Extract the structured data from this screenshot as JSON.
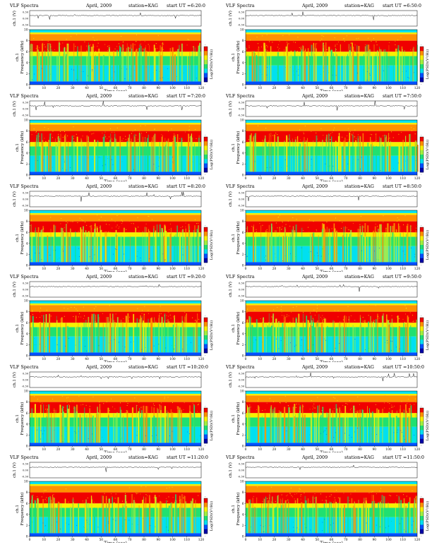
{
  "page": {
    "header_prefix": "VLF Spectra",
    "date": "April, 2009",
    "station": "station=KAG",
    "start_prefix": "start  UT  ="
  },
  "colors": {
    "deep_blue": "#0000a8",
    "blue": "#0050ff",
    "cyan": "#00e0f0",
    "green": "#20e070",
    "lime": "#a0f040",
    "yellow": "#f8f000",
    "orange": "#ff9000",
    "red": "#f00000"
  },
  "panels": [
    {
      "start_ut": "6:20:0"
    },
    {
      "start_ut": "6:50:0"
    },
    {
      "start_ut": "7:20:0"
    },
    {
      "start_ut": "7:50:0"
    },
    {
      "start_ut": "8:20:0"
    },
    {
      "start_ut": "8:50:0"
    },
    {
      "start_ut": "9:20:0"
    },
    {
      "start_ut": "9:50:0"
    },
    {
      "start_ut": "10:20:0"
    },
    {
      "start_ut": "10:50:0"
    },
    {
      "start_ut": "11:20:0"
    },
    {
      "start_ut": "11:50:0"
    }
  ],
  "chart_data": {
    "type": "heatmap",
    "xlabel": "Time  (sec)",
    "ylabel": "Frequency  (kHz)",
    "channel_label": "ch.1",
    "waveform_ylabel": "ch.1 (V)",
    "waveform_ticks": [
      "0.30",
      "0.00",
      "-0.30"
    ],
    "xlim": [
      0,
      120
    ],
    "x_ticks": [
      "0",
      "10",
      "20",
      "30",
      "40",
      "50",
      "60",
      "70",
      "80",
      "90",
      "100",
      "110",
      "120"
    ],
    "ylim": [
      0,
      10
    ],
    "y_ticks": [
      "0",
      "2",
      "4",
      "6",
      "8",
      "10"
    ],
    "colorbar_label": "Log(PSD)(V²/Hz)",
    "colorbar_ticks": [
      "-",
      "-"
    ],
    "band_structure_khz": [
      {
        "range": [
          0,
          0.6
        ],
        "level": "blue"
      },
      {
        "range": [
          0.6,
          3.5
        ],
        "level": "cyan"
      },
      {
        "range": [
          3.5,
          5.2
        ],
        "level": "green"
      },
      {
        "range": [
          5.2,
          6.0
        ],
        "level": "yellow"
      },
      {
        "range": [
          6.0,
          8.0
        ],
        "level": "red"
      },
      {
        "range": [
          8.0,
          9.2
        ],
        "level": "orange"
      },
      {
        "range": [
          9.2,
          9.5
        ],
        "level": "yellow"
      },
      {
        "range": [
          9.5,
          10.0
        ],
        "level": "cyan"
      }
    ]
  }
}
